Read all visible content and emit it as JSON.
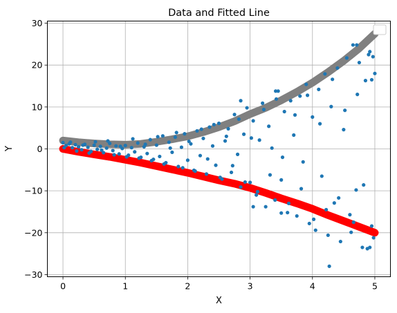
{
  "chart_data": {
    "type": "scatter",
    "title": "Data and Fitted Line",
    "xlabel": "X",
    "ylabel": "Y",
    "xlim": [
      -0.25,
      5.25
    ],
    "ylim": [
      -30.5,
      30.5
    ],
    "x_ticks": [
      0,
      1,
      2,
      3,
      4,
      5
    ],
    "y_ticks": [
      -30,
      -20,
      -10,
      0,
      10,
      20,
      30
    ],
    "x_tick_labels": [
      "0",
      "1",
      "2",
      "3",
      "4",
      "5"
    ],
    "y_tick_labels": [
      "−30",
      "−20",
      "−10",
      "0",
      "10",
      "20",
      "30"
    ],
    "grid": true,
    "legend": "top-right",
    "legend_entries": [],
    "series": [
      {
        "kind": "curve",
        "color": "#ff0000",
        "alpha": 1.0,
        "x": [
          0,
          0.25,
          0.5,
          0.75,
          1.0,
          1.25,
          1.5,
          1.75,
          2.0,
          2.25,
          2.5,
          2.75,
          3.0,
          3.25,
          3.5,
          3.75,
          4.0,
          4.25,
          4.5,
          4.75,
          5.0
        ],
        "y": [
          0,
          -0.7,
          -1.3,
          -1.9,
          -2.6,
          -3.3,
          -4.1,
          -4.9,
          -5.7,
          -6.6,
          -7.5,
          -8.3,
          -9.3,
          -10.5,
          -11.8,
          -13.0,
          -14.3,
          -15.8,
          -17.2,
          -18.6,
          -20.0
        ]
      },
      {
        "kind": "curve",
        "color": "#808080",
        "alpha": 1.0,
        "x": [
          0,
          0.25,
          0.5,
          0.75,
          1.0,
          1.25,
          1.5,
          1.75,
          2.0,
          2.25,
          2.5,
          2.75,
          3.0,
          3.25,
          3.5,
          3.75,
          4.0,
          4.25,
          4.5,
          4.75,
          5.0
        ],
        "y": [
          2.0,
          1.6,
          1.3,
          1.1,
          1.0,
          1.2,
          1.7,
          2.3,
          3.0,
          4.0,
          5.2,
          6.6,
          8.3,
          9.8,
          11.6,
          13.6,
          15.8,
          18.3,
          21.0,
          24.0,
          27.5
        ]
      },
      {
        "kind": "points",
        "color": "#1f77b4",
        "x": [
          0.0,
          0.05,
          0.1,
          0.15,
          0.2,
          0.25,
          0.3,
          0.35,
          0.4,
          0.45,
          0.5,
          0.55,
          0.6,
          0.65,
          0.7,
          0.75,
          0.8,
          0.85,
          0.9,
          0.95,
          1.0,
          1.05,
          1.1,
          1.15,
          1.2,
          1.25,
          1.3,
          1.35,
          1.4,
          1.45,
          1.5,
          1.55,
          1.6,
          1.65,
          1.7,
          1.75,
          1.8,
          1.85,
          1.9,
          1.95,
          2.0,
          2.05,
          2.1,
          2.15,
          2.2,
          2.25,
          2.3,
          2.35,
          2.4,
          2.45,
          2.5,
          2.55,
          2.6,
          2.65,
          2.7,
          2.75,
          2.8,
          2.85,
          2.9,
          2.95,
          3.0,
          3.05,
          3.1,
          3.15,
          3.2,
          3.25,
          3.3,
          3.35,
          3.4,
          3.45,
          3.5,
          3.55,
          3.6,
          3.65,
          3.7,
          3.75,
          3.8,
          3.85,
          3.9,
          3.95,
          4.0,
          4.05,
          4.1,
          4.15,
          4.2,
          4.25,
          4.3,
          4.35,
          4.4,
          4.45,
          4.5,
          4.55,
          4.6,
          4.65,
          4.7,
          4.75,
          4.8,
          4.85,
          4.9,
          4.95,
          5.0,
          0.02,
          0.12,
          0.22,
          0.32,
          0.42,
          0.52,
          0.62,
          0.72,
          0.82,
          0.92,
          1.02,
          1.12,
          1.22,
          1.32,
          1.42,
          1.52,
          1.62,
          1.72,
          1.82,
          1.92,
          2.02,
          2.12,
          2.22,
          2.32,
          2.42,
          2.52,
          2.62,
          2.72,
          2.82,
          2.92,
          3.02,
          3.12,
          3.22,
          3.32,
          3.42,
          3.52,
          3.62,
          3.72,
          3.82,
          3.92,
          4.02,
          4.12,
          4.22,
          4.32,
          4.42,
          4.52,
          4.62,
          4.72,
          4.82,
          4.92,
          4.98,
          4.27,
          4.88,
          4.92,
          3.41,
          3.5,
          4.71,
          4.66,
          4.95,
          4.97,
          2.85,
          3.05
        ],
        "y": [
          1.5,
          0.8,
          1.2,
          0.3,
          1.0,
          0.5,
          -0.2,
          1.1,
          0.4,
          -0.6,
          0.9,
          -0.1,
          0.6,
          -0.9,
          0.2,
          1.3,
          -0.4,
          0.7,
          -1.2,
          0.1,
          0.8,
          -1.5,
          0.3,
          -0.7,
          1.4,
          -2.0,
          0.5,
          -1.1,
          2.2,
          -2.5,
          0.9,
          -1.8,
          3.1,
          -3.3,
          1.6,
          -0.8,
          2.8,
          -4.2,
          0.4,
          3.6,
          -2.7,
          1.2,
          -5.1,
          4.3,
          -1.6,
          2.5,
          -6.0,
          5.2,
          0.7,
          -3.9,
          6.1,
          -7.2,
          1.9,
          4.8,
          -5.6,
          8.2,
          -1.3,
          -9.1,
          3.5,
          9.8,
          -8.0,
          6.7,
          -11.0,
          2.1,
          10.9,
          -13.8,
          5.4,
          0.2,
          -12.2,
          13.8,
          -7.4,
          8.9,
          -15.2,
          11.5,
          3.3,
          -16.0,
          12.6,
          -3.1,
          15.4,
          -17.8,
          7.6,
          -19.4,
          14.2,
          -6.5,
          17.9,
          -20.6,
          10.1,
          -12.9,
          19.3,
          -22.1,
          4.6,
          21.7,
          -15.7,
          24.8,
          -9.8,
          20.6,
          -23.5,
          16.3,
          22.5,
          -18.4,
          18.0,
          0.3,
          1.6,
          -0.5,
          0.9,
          -1.0,
          1.7,
          -0.3,
          1.9,
          -1.4,
          0.6,
          -1.9,
          2.4,
          -2.2,
          1.1,
          -2.8,
          2.9,
          -3.6,
          0.2,
          3.9,
          -4.5,
          1.8,
          -5.3,
          4.7,
          -2.4,
          5.8,
          -6.8,
          3.0,
          -4.0,
          7.1,
          -7.9,
          2.6,
          -10.2,
          9.4,
          -6.2,
          11.9,
          -2.0,
          -13.0,
          8.1,
          -9.5,
          12.8,
          -16.8,
          6.0,
          -14.5,
          16.6,
          -11.7,
          9.2,
          -19.9,
          13.0,
          -8.6,
          23.2,
          -21.2,
          -28.0,
          -23.8,
          -23.5,
          13.8,
          -15.3,
          24.8,
          -17.5,
          16.5,
          22.0,
          11.5,
          -13.8
        ]
      }
    ]
  }
}
